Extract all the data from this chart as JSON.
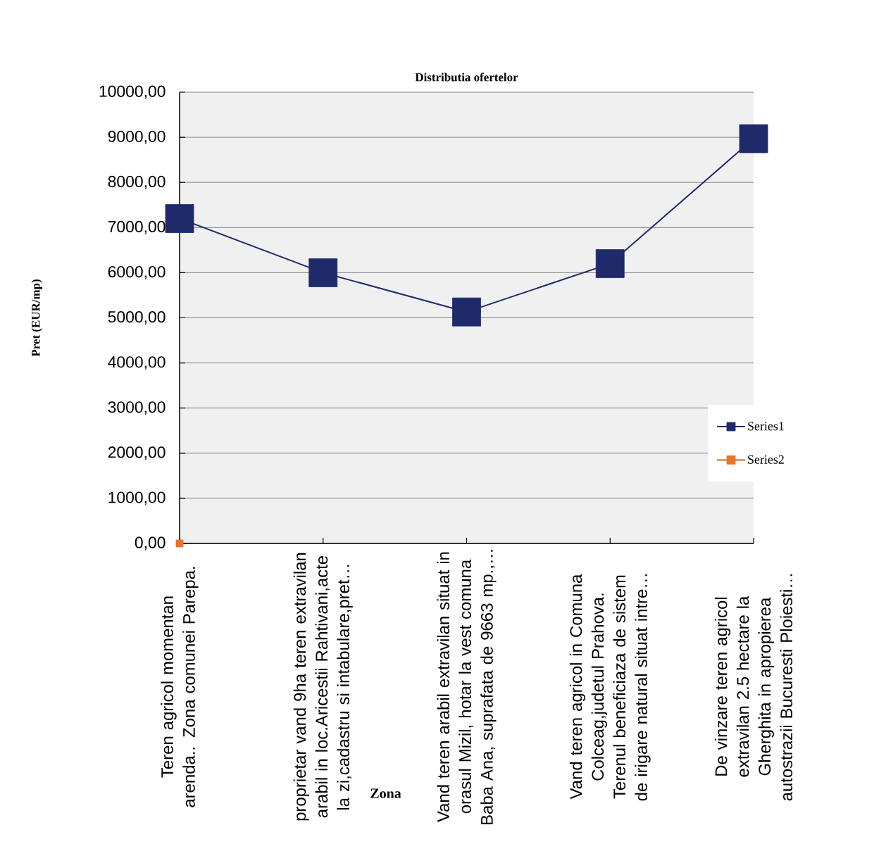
{
  "chart_data": {
    "type": "line",
    "title": "Distributia ofertelor",
    "xlabel": "Zona",
    "ylabel": "Pret (EUR/mp)",
    "categories": [
      "Teren agricol momentan arenda.. Zona comunei Parepa.",
      "proprietar vand 9ha teren extravilan arabil in loc.Aricestii Rahtivani,acte la zi,cadastru si intabulare,pret…",
      "Vand teren arabil extravilan situat in orasul Mizil, hotar la vest comuna Baba Ana, suprafata de 9663 mp.,…",
      "Vand teren agricol in Comuna Colceag,judetul Prahova. Terenul beneficiaza de sistem de irigare natural situat intre…",
      "De vinzare teren agricol extravilan 2.5 hectare la Gherghita in apropierea autostrazii Bucuresti Ploiesti…"
    ],
    "series": [
      {
        "name": "Series1",
        "color": "#1f2a6b",
        "values": [
          7200,
          6000,
          5130,
          6200,
          8970
        ]
      },
      {
        "name": "Series2",
        "color": "#e8742a",
        "values": [
          0,
          null,
          null,
          null,
          null
        ]
      }
    ],
    "ylim": [
      0,
      10000
    ],
    "yticks": [
      {
        "value": 0,
        "label": "0,00"
      },
      {
        "value": 1000,
        "label": "1000,00"
      },
      {
        "value": 2000,
        "label": "2000,00"
      },
      {
        "value": 3000,
        "label": "3000,00"
      },
      {
        "value": 4000,
        "label": "4000,00"
      },
      {
        "value": 5000,
        "label": "5000,00"
      },
      {
        "value": 6000,
        "label": "6000,00"
      },
      {
        "value": 7000,
        "label": "7000,00"
      },
      {
        "value": 8000,
        "label": "8000,00"
      },
      {
        "value": 9000,
        "label": "9000,00"
      },
      {
        "value": 10000,
        "label": "10000,00"
      }
    ],
    "grid": "y",
    "legend": "right",
    "marker": "square",
    "line_style": "solid"
  }
}
